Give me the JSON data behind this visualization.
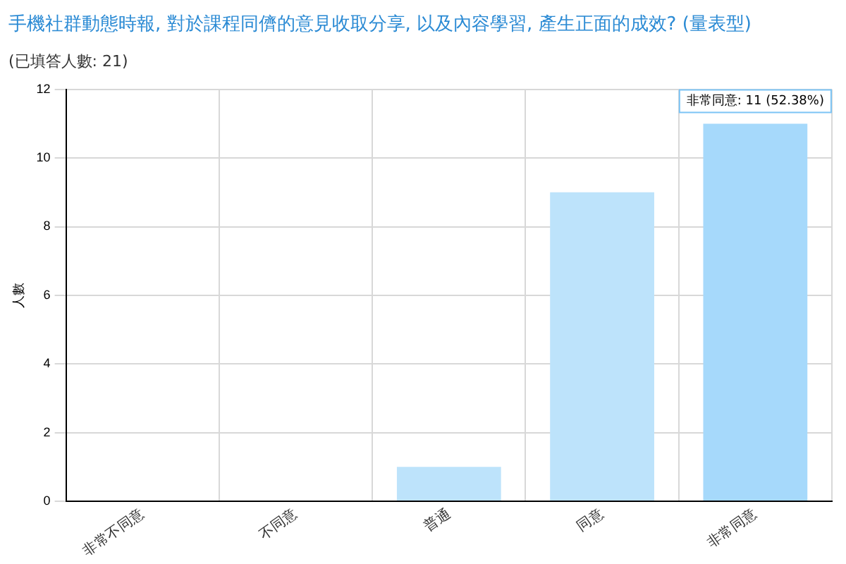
{
  "chart_data": {
    "type": "bar",
    "title": "手機社群動態時報, 對於課程同儕的意見收取分享, 以及內容學習, 產生正面的成效? (量表型)",
    "subtitle": "(已填答人數: 21)",
    "ylabel": "人數",
    "categories": [
      "非常不同意",
      "不同意",
      "普通",
      "同意",
      "非常同意"
    ],
    "values": [
      0,
      0,
      1,
      9,
      11
    ],
    "colors": [
      "#bde3fb",
      "#bde3fb",
      "#bde3fb",
      "#bde3fb",
      "#a6d9fb"
    ],
    "ylim": [
      0,
      12
    ],
    "yticks": [
      0,
      2,
      4,
      6,
      8,
      10,
      12
    ],
    "grid": true,
    "annotations": [
      {
        "text": "非常同意: 11 (52.38%)",
        "x": "非常同意",
        "y": 11
      }
    ]
  }
}
